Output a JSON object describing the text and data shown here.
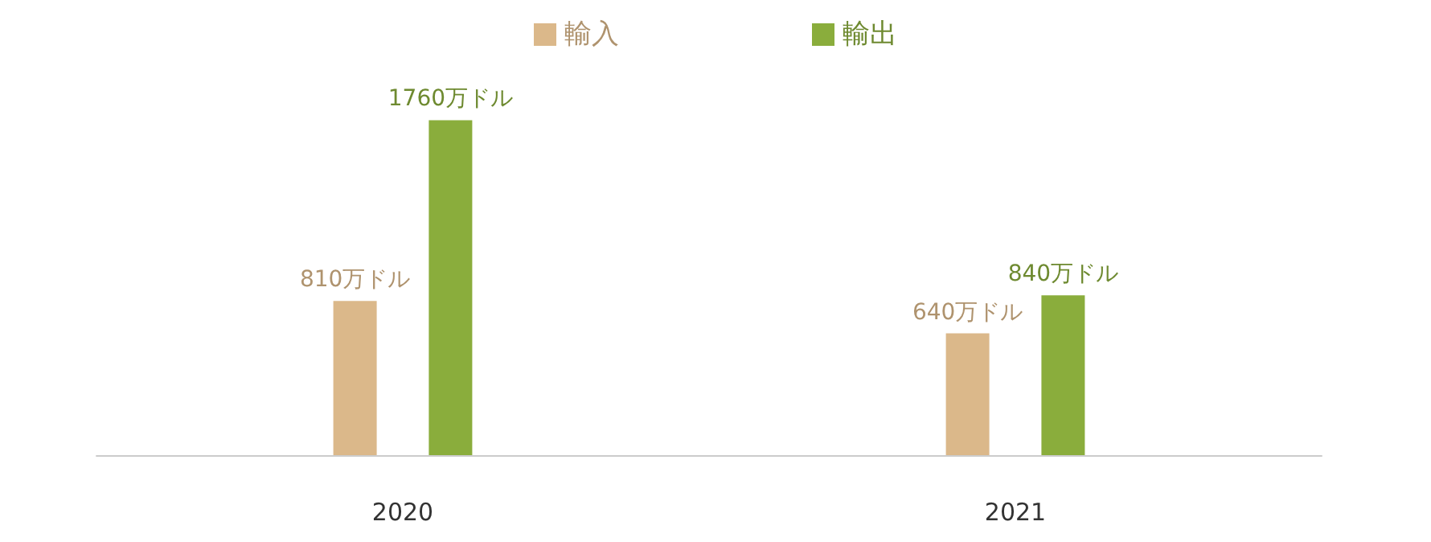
{
  "chart_data": {
    "type": "bar",
    "categories": [
      "2020",
      "2021"
    ],
    "series": [
      {
        "name": "輸入",
        "color": "#dbb88a",
        "values": [
          810,
          640
        ],
        "value_labels": [
          "810万ドル",
          "640万ドル"
        ]
      },
      {
        "name": "輸出",
        "color": "#8aad3c",
        "values": [
          1760,
          840
        ],
        "value_labels": [
          "1760万ドル",
          "840万ドル"
        ]
      }
    ],
    "legend": "top",
    "grid": false
  }
}
